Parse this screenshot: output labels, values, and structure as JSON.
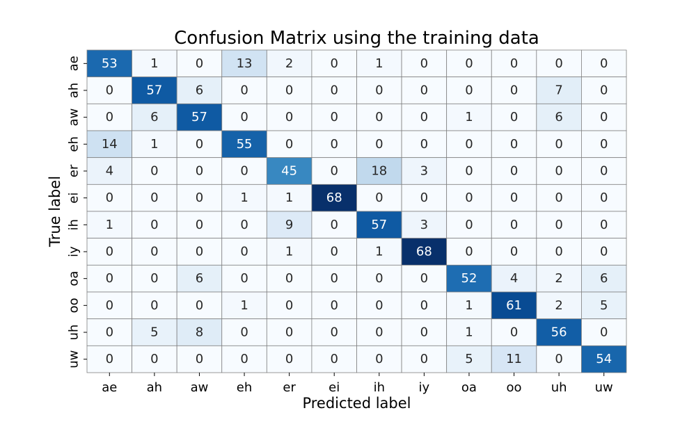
{
  "chart_data": {
    "type": "heatmap",
    "title": "Confusion Matrix using the training data",
    "xlabel": "Predicted label",
    "ylabel": "True label",
    "x_categories": [
      "ae",
      "ah",
      "aw",
      "eh",
      "er",
      "ei",
      "ih",
      "iy",
      "oa",
      "oo",
      "uh",
      "uw"
    ],
    "y_categories": [
      "ae",
      "ah",
      "aw",
      "eh",
      "er",
      "ei",
      "ih",
      "iy",
      "oa",
      "oo",
      "uh",
      "uw"
    ],
    "values": [
      [
        53,
        1,
        0,
        13,
        2,
        0,
        1,
        0,
        0,
        0,
        0,
        0
      ],
      [
        0,
        57,
        6,
        0,
        0,
        0,
        0,
        0,
        0,
        0,
        7,
        0
      ],
      [
        0,
        6,
        57,
        0,
        0,
        0,
        0,
        0,
        1,
        0,
        6,
        0
      ],
      [
        14,
        1,
        0,
        55,
        0,
        0,
        0,
        0,
        0,
        0,
        0,
        0
      ],
      [
        4,
        0,
        0,
        0,
        45,
        0,
        18,
        3,
        0,
        0,
        0,
        0
      ],
      [
        0,
        0,
        0,
        1,
        1,
        68,
        0,
        0,
        0,
        0,
        0,
        0
      ],
      [
        1,
        0,
        0,
        0,
        9,
        0,
        57,
        3,
        0,
        0,
        0,
        0
      ],
      [
        0,
        0,
        0,
        0,
        1,
        0,
        1,
        68,
        0,
        0,
        0,
        0
      ],
      [
        0,
        0,
        6,
        0,
        0,
        0,
        0,
        0,
        52,
        4,
        2,
        6
      ],
      [
        0,
        0,
        0,
        1,
        0,
        0,
        0,
        0,
        1,
        61,
        2,
        5
      ],
      [
        0,
        5,
        8,
        0,
        0,
        0,
        0,
        0,
        1,
        0,
        56,
        0
      ],
      [
        0,
        0,
        0,
        0,
        0,
        0,
        0,
        0,
        5,
        11,
        0,
        54
      ]
    ],
    "colormap": "Blues",
    "color_low": "#f7fbff",
    "color_high": "#08306b",
    "cell_border_color": "#808080",
    "text_color_dark": "#262626",
    "text_color_light": "#ffffff",
    "colorbar": false
  }
}
